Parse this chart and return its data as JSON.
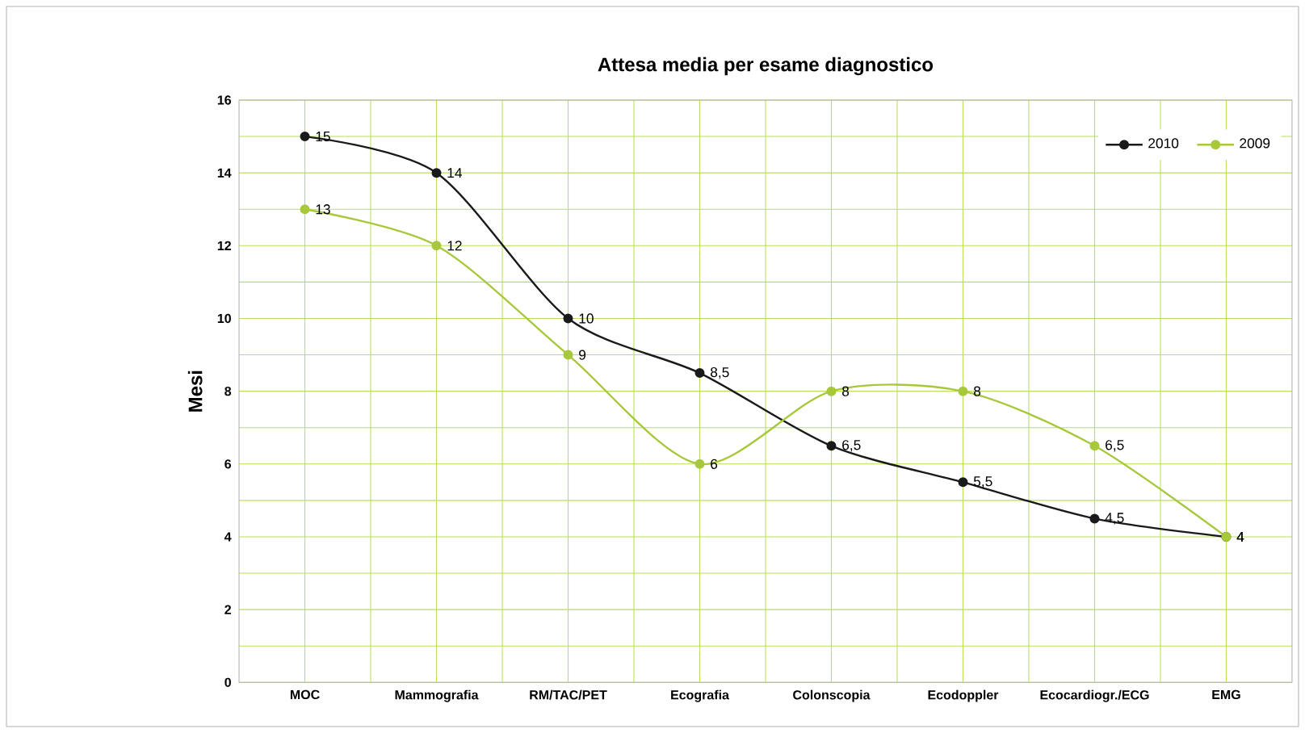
{
  "chart_data": {
    "type": "line",
    "title": "Attesa media per esame diagnostico",
    "ylabel": "Mesi",
    "categories": [
      "MOC",
      "Mammografia",
      "RM/TAC/PET",
      "Ecografia",
      "Colonscopia",
      "Ecodoppler",
      "Ecocardiogr./ECG",
      "EMG"
    ],
    "series": [
      {
        "name": "2010",
        "color": "#1a1a1a",
        "values": [
          15,
          14,
          10,
          8.5,
          6.5,
          5.5,
          4.5,
          4
        ],
        "value_labels": [
          "15",
          "14",
          "10",
          "8,5",
          "6,5",
          "5,5",
          "4,5",
          "4"
        ]
      },
      {
        "name": "2009",
        "color": "#a8c83c",
        "values": [
          13,
          12,
          9,
          6,
          8,
          8,
          6.5,
          4
        ],
        "value_labels": [
          "13",
          "12",
          "9",
          "6",
          "8",
          "8",
          "6,5",
          "4"
        ]
      }
    ],
    "ylim": [
      0,
      16
    ],
    "yticks": [
      0,
      2,
      4,
      6,
      8,
      10,
      12,
      14,
      16
    ],
    "grid": true,
    "legend": "top right",
    "marker": "circle",
    "line_style": "solid"
  }
}
